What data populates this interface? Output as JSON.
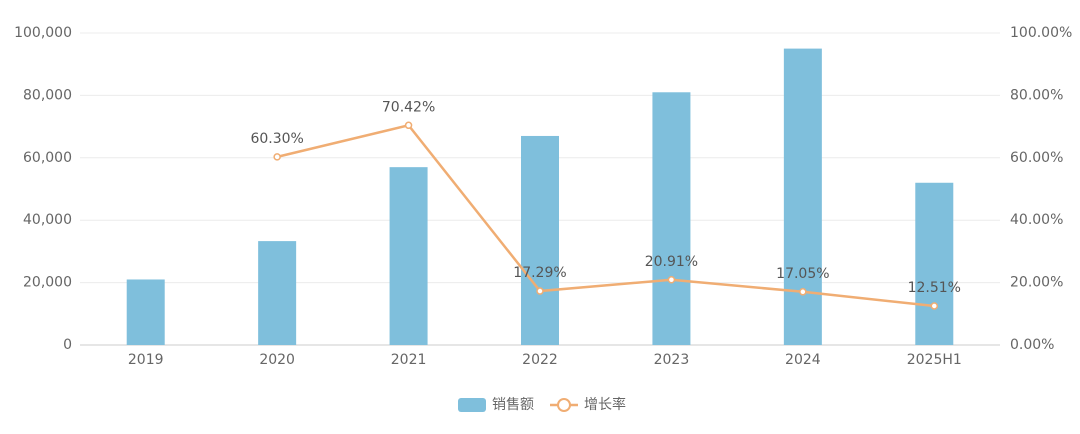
{
  "chart_data": {
    "type": "bar",
    "categories": [
      "2019",
      "2020",
      "2021",
      "2022",
      "2023",
      "2024",
      "2025H1"
    ],
    "series": [
      {
        "name": "销售额",
        "type": "bar",
        "color": "#7fbfdc",
        "values": [
          21000,
          33300,
          57000,
          67000,
          81000,
          95000,
          52000
        ]
      },
      {
        "name": "增长率",
        "type": "line",
        "axis": "y2",
        "color": "#f0ad73",
        "values": [
          null,
          60.3,
          70.42,
          17.29,
          20.91,
          17.05,
          12.51
        ],
        "value_labels": [
          null,
          "60.30%",
          "70.42%",
          "17.29%",
          "20.91%",
          "17.05%",
          "12.51%"
        ]
      }
    ],
    "ylim": [
      0,
      100000
    ],
    "yticks": [
      0,
      {
        "value": 20000,
        "label": "20,000"
      },
      {
        "value": 40000,
        "label": "40,000"
      },
      {
        "value": 60000,
        "label": "60,000"
      },
      {
        "value": 80000,
        "label": "80,000"
      },
      {
        "value": 100000,
        "label": "100,000"
      }
    ],
    "y2lim": [
      0,
      100
    ],
    "y2ticks": [
      {
        "value": 0,
        "label": "0.00%"
      },
      {
        "value": 20,
        "label": "20.00%"
      },
      {
        "value": 40,
        "label": "40.00%"
      },
      {
        "value": 60,
        "label": "60.00%"
      },
      {
        "value": 80,
        "label": "80.00%"
      },
      {
        "value": 100,
        "label": "100.00%"
      }
    ],
    "grid": true,
    "legend": "bottom"
  }
}
